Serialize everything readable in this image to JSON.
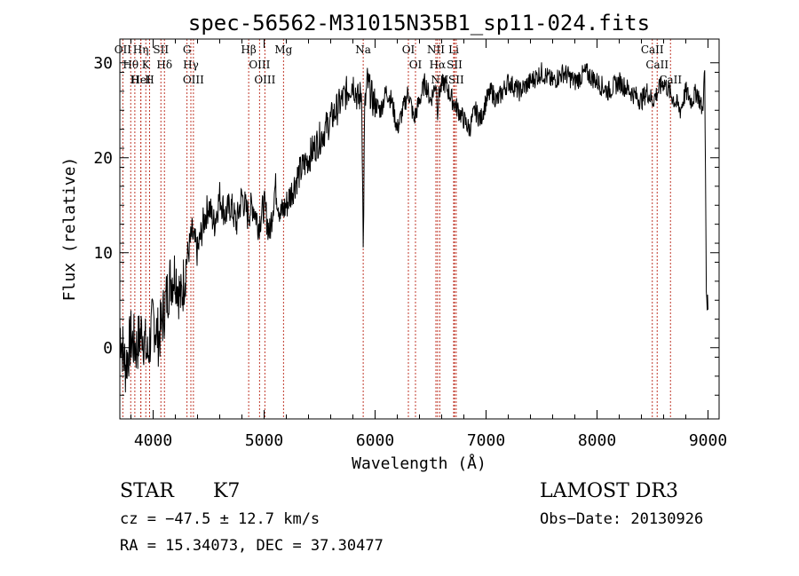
{
  "chart_data": {
    "type": "line",
    "title": "spec-56562-M31015N35B1_sp11-024.fits",
    "xlabel": "Wavelength (Å)",
    "ylabel": "Flux (relative)",
    "xlim": [
      3700,
      9100
    ],
    "ylim": [
      -7.5,
      32.5
    ],
    "x_ticks": [
      4000,
      5000,
      6000,
      7000,
      8000,
      9000
    ],
    "x_tick_labels": [
      "4000",
      "5000",
      "6000",
      "7000",
      "8000",
      "9000"
    ],
    "y_ticks": [
      0,
      10,
      20,
      30
    ],
    "y_tick_labels": [
      "0",
      "10",
      "20",
      "30"
    ],
    "series": [
      {
        "name": "flux",
        "x": [
          3700,
          3750,
          3800,
          3850,
          3900,
          3950,
          4000,
          4050,
          4100,
          4150,
          4200,
          4250,
          4300,
          4350,
          4400,
          4450,
          4500,
          4550,
          4600,
          4650,
          4700,
          4750,
          4800,
          4850,
          4900,
          4950,
          5000,
          5050,
          5100,
          5150,
          5200,
          5300,
          5400,
          5500,
          5600,
          5700,
          5750,
          5800,
          5850,
          5880,
          5893,
          5906,
          5930,
          5980,
          6050,
          6100,
          6150,
          6200,
          6250,
          6300,
          6350,
          6400,
          6450,
          6500,
          6550,
          6563,
          6580,
          6620,
          6700,
          6750,
          6800,
          6850,
          6900,
          6950,
          7000,
          7050,
          7100,
          7200,
          7300,
          7400,
          7500,
          7600,
          7700,
          7800,
          7900,
          8000,
          8100,
          8200,
          8300,
          8400,
          8450,
          8500,
          8550,
          8600,
          8650,
          8700,
          8750,
          8800,
          8850,
          8900,
          8950,
          8970,
          8985,
          9000
        ],
        "y": [
          2,
          -2,
          1,
          0,
          2,
          -1,
          3,
          1,
          4,
          7,
          8,
          5,
          9,
          12,
          10,
          13,
          15,
          13,
          16,
          14,
          15,
          13,
          16,
          14,
          15,
          13,
          15,
          12,
          17,
          14,
          15,
          18,
          20,
          22,
          24,
          26,
          27,
          28,
          26,
          27,
          10,
          25,
          28,
          26,
          25,
          27,
          26,
          23,
          25,
          27,
          24,
          26,
          28,
          26,
          28,
          25,
          27,
          28,
          26,
          25,
          24,
          23,
          25,
          24,
          26,
          27,
          26,
          28,
          27,
          28,
          29,
          28,
          29,
          28,
          29,
          28,
          27,
          28,
          27,
          26,
          27,
          26,
          27,
          28,
          27,
          26,
          25,
          27,
          26,
          27,
          25,
          29,
          6,
          4
        ]
      }
    ],
    "lines": [
      {
        "name": "Hθ",
        "wavelength": 3798
      },
      {
        "name": "H",
        "wavelength": 3835
      },
      {
        "name": "OII",
        "wavelength": 3727
      },
      {
        "name": "HeI",
        "wavelength": 3889
      },
      {
        "name": "Hη",
        "wavelength": 3889
      },
      {
        "name": "K",
        "wavelength": 3934
      },
      {
        "name": "H",
        "wavelength": 3968
      },
      {
        "name": "SII",
        "wavelength": 4070
      },
      {
        "name": "Hδ",
        "wavelength": 4102
      },
      {
        "name": "OIII",
        "wavelength": 4363
      },
      {
        "name": "Hγ",
        "wavelength": 4340
      },
      {
        "name": "G",
        "wavelength": 4305
      },
      {
        "name": "Hβ",
        "wavelength": 4861
      },
      {
        "name": "OIII",
        "wavelength": 4959
      },
      {
        "name": "OIII",
        "wavelength": 5007
      },
      {
        "name": "Mg",
        "wavelength": 5175
      },
      {
        "name": "Na",
        "wavelength": 5893
      },
      {
        "name": "OI",
        "wavelength": 6300
      },
      {
        "name": "OI",
        "wavelength": 6364
      },
      {
        "name": "Hα",
        "wavelength": 6563
      },
      {
        "name": "NII",
        "wavelength": 6548
      },
      {
        "name": "NII",
        "wavelength": 6583
      },
      {
        "name": "SII",
        "wavelength": 6716
      },
      {
        "name": "SII",
        "wavelength": 6731
      },
      {
        "name": "Li",
        "wavelength": 6708
      },
      {
        "name": "CaII",
        "wavelength": 8498
      },
      {
        "name": "CaII",
        "wavelength": 8542
      },
      {
        "name": "CaII",
        "wavelength": 8662
      }
    ]
  },
  "colors": {
    "spectrum": "#000000",
    "marker_lines": "#c0392b",
    "axes": "#000000"
  },
  "info": {
    "object_class": "STAR",
    "subclass": "K7",
    "survey": "LAMOST DR3",
    "cz": "cz = −47.5 ± 12.7 km/s",
    "obs_date": "Obs−Date: 20130926",
    "coords": "RA =  15.34073, DEC =  37.30477"
  }
}
